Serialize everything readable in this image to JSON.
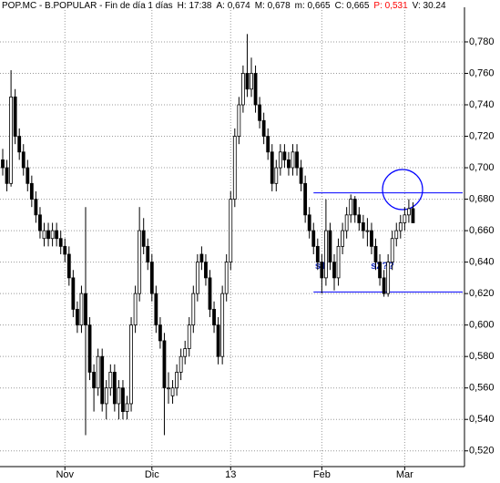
{
  "chart_data": {
    "type": "candlestick",
    "header": [
      {
        "text": "POP.MC - B.POPULAR - Fin de día 1 días",
        "color": "#000000"
      },
      {
        "text": "H: 17:38",
        "color": "#000000"
      },
      {
        "text": "A: 0,674",
        "color": "#000000"
      },
      {
        "text": "M: 0,678",
        "color": "#000000"
      },
      {
        "text": "m: 0,665",
        "color": "#000000"
      },
      {
        "text": "C: 0,665",
        "color": "#000000"
      },
      {
        "text": "P: 0,531",
        "color": "#ff0000"
      },
      {
        "text": "V: 30.24",
        "color": "#000000"
      }
    ],
    "categories": [
      null,
      null,
      null,
      null,
      null,
      null,
      null,
      null,
      null,
      null,
      null,
      null,
      null,
      null,
      null,
      "Nov",
      null,
      null,
      null,
      null,
      null,
      null,
      null,
      null,
      null,
      null,
      null,
      null,
      null,
      null,
      null,
      null,
      null,
      null,
      null,
      null,
      "Dic",
      null,
      null,
      null,
      null,
      null,
      null,
      null,
      null,
      null,
      null,
      null,
      null,
      null,
      null,
      null,
      null,
      null,
      null,
      "13",
      null,
      null,
      null,
      null,
      null,
      null,
      null,
      null,
      null,
      null,
      null,
      null,
      null,
      null,
      null,
      null,
      null,
      null,
      null,
      null,
      null,
      "Feb",
      null,
      null,
      null,
      null,
      null,
      null,
      null,
      null,
      null,
      null,
      null,
      null,
      null,
      null,
      null,
      null,
      null,
      null,
      null,
      "Mar",
      null,
      null
    ],
    "ohlc": [
      [
        0.705,
        0.712,
        0.695,
        0.7
      ],
      [
        0.7,
        0.705,
        0.685,
        0.69
      ],
      [
        0.69,
        0.762,
        0.688,
        0.745
      ],
      [
        0.745,
        0.75,
        0.715,
        0.72
      ],
      [
        0.72,
        0.725,
        0.705,
        0.71
      ],
      [
        0.71,
        0.715,
        0.695,
        0.7
      ],
      [
        0.7,
        0.705,
        0.685,
        0.69
      ],
      [
        0.69,
        0.695,
        0.675,
        0.68
      ],
      [
        0.68,
        0.685,
        0.665,
        0.67
      ],
      [
        0.67,
        0.675,
        0.655,
        0.66
      ],
      [
        0.655,
        0.665,
        0.65,
        0.66
      ],
      [
        0.66,
        0.665,
        0.65,
        0.655
      ],
      [
        0.655,
        0.665,
        0.65,
        0.66
      ],
      [
        0.66,
        0.665,
        0.65,
        0.655
      ],
      [
        0.655,
        0.66,
        0.645,
        0.65
      ],
      [
        0.65,
        0.655,
        0.64,
        0.645
      ],
      [
        0.645,
        0.65,
        0.625,
        0.63
      ],
      [
        0.63,
        0.635,
        0.605,
        0.61
      ],
      [
        0.61,
        0.615,
        0.595,
        0.6
      ],
      [
        0.6,
        0.625,
        0.595,
        0.62
      ],
      [
        0.62,
        0.675,
        0.53,
        0.6
      ],
      [
        0.6,
        0.605,
        0.565,
        0.57
      ],
      [
        0.57,
        0.575,
        0.545,
        0.56
      ],
      [
        0.56,
        0.585,
        0.555,
        0.58
      ],
      [
        0.58,
        0.585,
        0.545,
        0.55
      ],
      [
        0.55,
        0.565,
        0.54,
        0.56
      ],
      [
        0.56,
        0.575,
        0.555,
        0.57
      ],
      [
        0.57,
        0.575,
        0.545,
        0.55
      ],
      [
        0.55,
        0.565,
        0.54,
        0.56
      ],
      [
        0.56,
        0.565,
        0.54,
        0.545
      ],
      [
        0.545,
        0.555,
        0.54,
        0.55
      ],
      [
        0.55,
        0.605,
        0.545,
        0.6
      ],
      [
        0.6,
        0.625,
        0.595,
        0.62
      ],
      [
        0.62,
        0.675,
        0.615,
        0.66
      ],
      [
        0.66,
        0.668,
        0.645,
        0.65
      ],
      [
        0.65,
        0.655,
        0.635,
        0.64
      ],
      [
        0.64,
        0.645,
        0.615,
        0.62
      ],
      [
        0.62,
        0.625,
        0.595,
        0.6
      ],
      [
        0.6,
        0.605,
        0.585,
        0.59
      ],
      [
        0.59,
        0.595,
        0.53,
        0.56
      ],
      [
        0.56,
        0.57,
        0.55,
        0.56
      ],
      [
        0.555,
        0.565,
        0.55,
        0.56
      ],
      [
        0.56,
        0.575,
        0.555,
        0.57
      ],
      [
        0.57,
        0.585,
        0.565,
        0.58
      ],
      [
        0.58,
        0.59,
        0.575,
        0.585
      ],
      [
        0.585,
        0.605,
        0.58,
        0.6
      ],
      [
        0.6,
        0.625,
        0.595,
        0.62
      ],
      [
        0.62,
        0.645,
        0.615,
        0.64
      ],
      [
        0.645,
        0.65,
        0.635,
        0.64
      ],
      [
        0.64,
        0.645,
        0.625,
        0.63
      ],
      [
        0.63,
        0.635,
        0.605,
        0.61
      ],
      [
        0.61,
        0.615,
        0.595,
        0.6
      ],
      [
        0.6,
        0.605,
        0.575,
        0.58
      ],
      [
        0.58,
        0.625,
        0.575,
        0.62
      ],
      [
        0.62,
        0.645,
        0.615,
        0.64
      ],
      [
        0.64,
        0.685,
        0.635,
        0.68
      ],
      [
        0.68,
        0.725,
        0.675,
        0.72
      ],
      [
        0.72,
        0.745,
        0.715,
        0.74
      ],
      [
        0.74,
        0.765,
        0.735,
        0.76
      ],
      [
        0.76,
        0.785,
        0.745,
        0.75
      ],
      [
        0.75,
        0.77,
        0.745,
        0.76
      ],
      [
        0.76,
        0.765,
        0.735,
        0.74
      ],
      [
        0.74,
        0.745,
        0.725,
        0.73
      ],
      [
        0.73,
        0.735,
        0.715,
        0.72
      ],
      [
        0.72,
        0.725,
        0.705,
        0.71
      ],
      [
        0.71,
        0.715,
        0.685,
        0.69
      ],
      [
        0.69,
        0.705,
        0.685,
        0.7
      ],
      [
        0.7,
        0.715,
        0.695,
        0.71
      ],
      [
        0.71,
        0.715,
        0.7,
        0.705
      ],
      [
        0.705,
        0.71,
        0.695,
        0.7
      ],
      [
        0.7,
        0.715,
        0.695,
        0.71
      ],
      [
        0.71,
        0.715,
        0.695,
        0.7
      ],
      [
        0.7,
        0.705,
        0.685,
        0.69
      ],
      [
        0.69,
        0.695,
        0.665,
        0.67
      ],
      [
        0.67,
        0.675,
        0.655,
        0.66
      ],
      [
        0.66,
        0.665,
        0.645,
        0.65
      ],
      [
        0.65,
        0.655,
        0.635,
        0.64
      ],
      [
        0.64,
        0.645,
        0.62,
        0.63
      ],
      [
        0.63,
        0.68,
        0.625,
        0.66
      ],
      [
        0.66,
        0.665,
        0.635,
        0.64
      ],
      [
        0.64,
        0.645,
        0.622,
        0.63
      ],
      [
        0.63,
        0.655,
        0.625,
        0.65
      ],
      [
        0.65,
        0.665,
        0.645,
        0.66
      ],
      [
        0.66,
        0.675,
        0.655,
        0.67
      ],
      [
        0.67,
        0.683,
        0.665,
        0.68
      ],
      [
        0.68,
        0.682,
        0.665,
        0.67
      ],
      [
        0.67,
        0.675,
        0.66,
        0.665
      ],
      [
        0.665,
        0.67,
        0.655,
        0.66
      ],
      [
        0.66,
        0.668,
        0.65,
        0.66
      ],
      [
        0.66,
        0.665,
        0.645,
        0.65
      ],
      [
        0.65,
        0.655,
        0.635,
        0.64
      ],
      [
        0.64,
        0.645,
        0.625,
        0.63
      ],
      [
        0.63,
        0.635,
        0.618,
        0.62
      ],
      [
        0.62,
        0.645,
        0.618,
        0.64
      ],
      [
        0.64,
        0.66,
        0.635,
        0.655
      ],
      [
        0.655,
        0.665,
        0.65,
        0.66
      ],
      [
        0.66,
        0.67,
        0.655,
        0.665
      ],
      [
        0.665,
        0.675,
        0.66,
        0.67
      ],
      [
        0.67,
        0.68,
        0.665,
        0.674
      ],
      [
        0.674,
        0.678,
        0.665,
        0.665
      ]
    ],
    "up_color": "#ffffff",
    "down_color": "#000000",
    "line_color": "#000000",
    "levels": [
      0.684,
      0.621
    ],
    "level_color": "#0000ff",
    "annotations": [
      "s1",
      "s2??"
    ],
    "ylim": [
      0.51,
      0.802
    ],
    "yticks": [
      {
        "value": 0.52,
        "label": "0,520"
      },
      {
        "value": 0.54,
        "label": "0,540"
      },
      {
        "value": 0.56,
        "label": "0,560"
      },
      {
        "value": 0.58,
        "label": "0,580"
      },
      {
        "value": 0.6,
        "label": "0,600"
      },
      {
        "value": 0.62,
        "label": "0,620"
      },
      {
        "value": 0.64,
        "label": "0,640"
      },
      {
        "value": 0.66,
        "label": "0,660"
      },
      {
        "value": 0.68,
        "label": "0,680"
      },
      {
        "value": 0.7,
        "label": "0,700"
      },
      {
        "value": 0.72,
        "label": "0,720"
      },
      {
        "value": 0.74,
        "label": "0,740"
      },
      {
        "value": 0.76,
        "label": "0,760"
      },
      {
        "value": 0.78,
        "label": "0,780"
      }
    ],
    "grid": true
  }
}
